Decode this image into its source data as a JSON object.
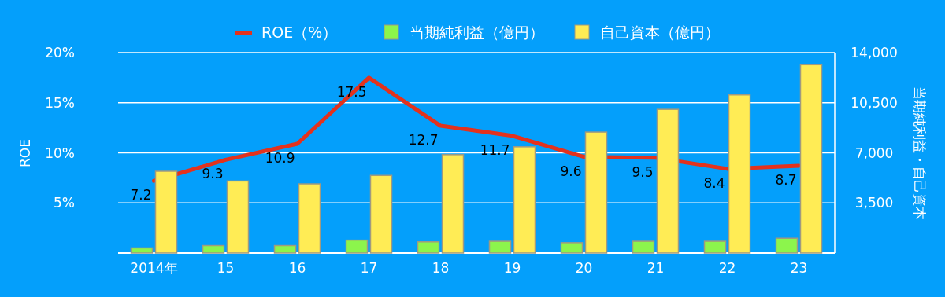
{
  "chart_data": {
    "type": "bar",
    "categories": [
      "2014年",
      "15",
      "16",
      "17",
      "18",
      "19",
      "20",
      "21",
      "22",
      "23"
    ],
    "series": [
      {
        "name": "ROE（%）",
        "type": "line",
        "axis": "y",
        "color": "#e3321d",
        "values": [
          7.2,
          9.3,
          10.9,
          17.5,
          12.7,
          11.7,
          9.6,
          9.5,
          8.4,
          8.7
        ],
        "value_labels": [
          "7.2",
          "9.3",
          "10.9",
          "17.5",
          "12.7",
          "11.7",
          "9.6",
          "9.5",
          "8.4",
          "8.7"
        ]
      },
      {
        "name": "当期純利益（億円）",
        "axis": "y2",
        "color": "#8cf54c",
        "values": [
          360,
          520,
          520,
          900,
          780,
          820,
          720,
          820,
          820,
          1030
        ]
      },
      {
        "name": "自己資本（億円）",
        "axis": "y2",
        "color": "#ffec55",
        "values": [
          5710,
          5030,
          4830,
          5420,
          6870,
          7420,
          8450,
          10040,
          11050,
          13160
        ]
      }
    ],
    "ylabel": "ROE",
    "y2label": "当期純利益・自己資本",
    "ylim": [
      0,
      20
    ],
    "yticks": [
      {
        "value": 0,
        "label": null
      },
      {
        "value": 5,
        "label": "5%"
      },
      {
        "value": 10,
        "label": "10%"
      },
      {
        "value": 15,
        "label": "15%"
      },
      {
        "value": 20,
        "label": "20%"
      }
    ],
    "y2lim": [
      0,
      14000
    ],
    "y2ticks": [
      {
        "value": 0,
        "label": null
      },
      {
        "value": 3500,
        "label": "3,500"
      },
      {
        "value": 7000,
        "label": "7,000"
      },
      {
        "value": 10500,
        "label": "10,500"
      },
      {
        "value": 14000,
        "label": "14,000"
      }
    ],
    "grid": "y",
    "legend": "top"
  }
}
